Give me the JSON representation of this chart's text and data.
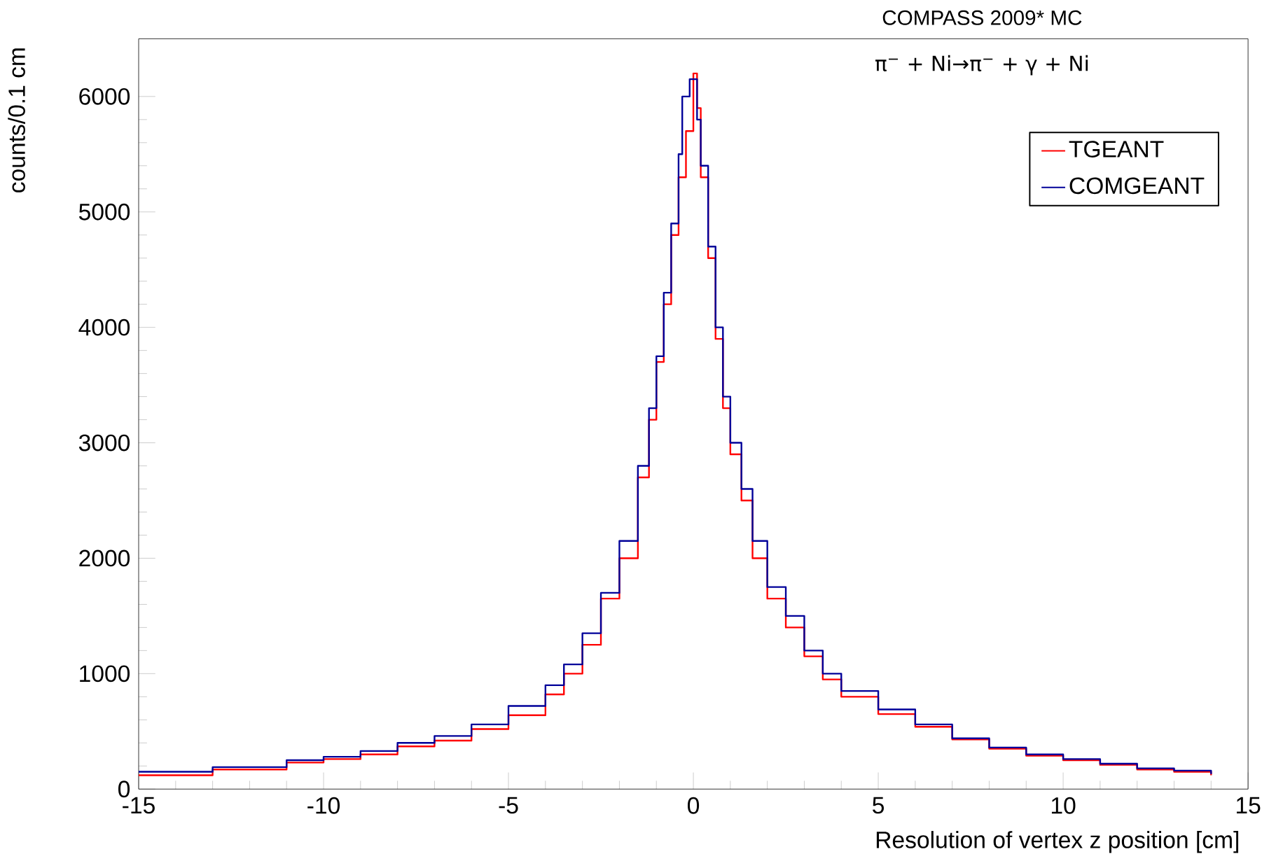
{
  "chart_data": {
    "type": "step",
    "title": "COMPASS 2009* MC",
    "xlabel": "Resolution of vertex z position [cm]",
    "ylabel": "counts/0.1 cm",
    "annotations": [
      "π$^{−}$ + Ni→π$^{−}$ + γ + Ni"
    ],
    "xlim": [
      -15,
      15
    ],
    "ylim": [
      0,
      6500
    ],
    "xticks": [
      -15,
      -10,
      -5,
      0,
      5,
      10,
      15
    ],
    "yticks": [
      0,
      1000,
      2000,
      3000,
      4000,
      5000,
      6000
    ],
    "legend": "top right",
    "grid": false,
    "series": [
      {
        "name": "TGEANT",
        "color": "#ff0000",
        "x": [
          -15,
          -13,
          -11,
          -10,
          -9,
          -8,
          -7,
          -6,
          -5,
          -4,
          -3.5,
          -3,
          -2.5,
          -2,
          -1.5,
          -1.2,
          -1,
          -0.8,
          -0.6,
          -0.4,
          -0.2,
          0,
          0.1,
          0.2,
          0.4,
          0.6,
          0.8,
          1,
          1.3,
          1.6,
          2,
          2.5,
          3,
          3.5,
          4,
          5,
          6,
          7,
          8,
          9,
          10,
          11,
          12,
          13,
          14
        ],
        "values": [
          120,
          170,
          230,
          260,
          300,
          370,
          420,
          520,
          640,
          820,
          1000,
          1250,
          1650,
          2000,
          2700,
          3200,
          3700,
          4200,
          4800,
          5300,
          5700,
          6200,
          5900,
          5300,
          4600,
          3900,
          3300,
          2900,
          2500,
          2000,
          1650,
          1400,
          1150,
          950,
          800,
          650,
          540,
          430,
          350,
          290,
          250,
          210,
          170,
          150,
          120
        ]
      },
      {
        "name": "COMGEANT",
        "color": "#000099",
        "x": [
          -15,
          -13,
          -11,
          -10,
          -9,
          -8,
          -7,
          -6,
          -5,
          -4,
          -3.5,
          -3,
          -2.5,
          -2,
          -1.5,
          -1.2,
          -1,
          -0.8,
          -0.6,
          -0.4,
          -0.3,
          -0.1,
          0.1,
          0.2,
          0.4,
          0.6,
          0.8,
          1,
          1.3,
          1.6,
          2,
          2.5,
          3,
          3.5,
          4,
          5,
          6,
          7,
          8,
          9,
          10,
          11,
          12,
          13,
          14
        ],
        "values": [
          150,
          190,
          250,
          280,
          330,
          400,
          460,
          560,
          720,
          900,
          1080,
          1350,
          1700,
          2150,
          2800,
          3300,
          3750,
          4300,
          4900,
          5500,
          6000,
          6150,
          5800,
          5400,
          4700,
          4000,
          3400,
          3000,
          2600,
          2150,
          1750,
          1500,
          1200,
          1000,
          850,
          690,
          560,
          440,
          360,
          300,
          260,
          220,
          180,
          160,
          130
        ]
      }
    ]
  }
}
